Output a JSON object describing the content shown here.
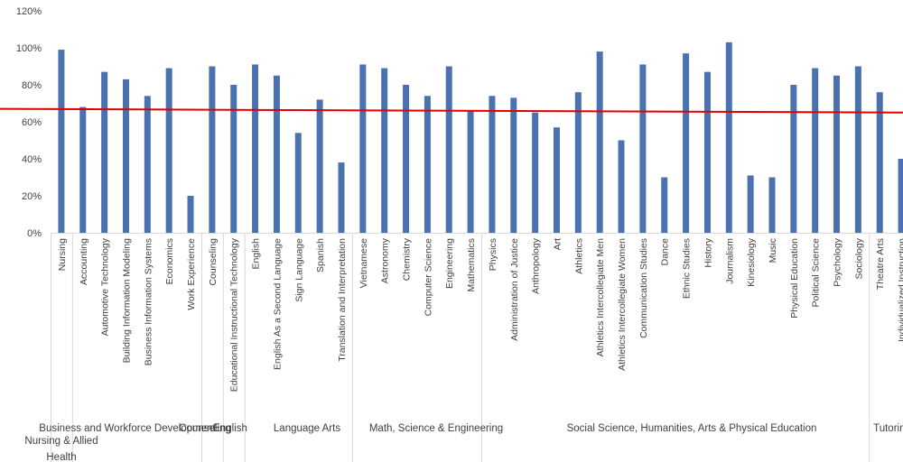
{
  "chart_data": {
    "type": "bar",
    "ylim": [
      0,
      120
    ],
    "y_ticks": [
      "0%",
      "20%",
      "40%",
      "60%",
      "80%",
      "100%",
      "120%"
    ],
    "grid": false,
    "legend": "none",
    "bar_color": "#4a72b0",
    "line_color": "#e00000",
    "categories": [
      "Nursing",
      "Accounting",
      "Automotive Technology",
      "Building Information Modeling",
      "Business Information Systems",
      "Economics",
      "Work Experience",
      "Counseling",
      "Educational Instructional Technology",
      "English",
      "English As a Second Language",
      "Sign Language",
      "Spanish",
      "Translation and Interpretation",
      "Vietnamese",
      "Astronomy",
      "Chemistry",
      "Computer Science",
      "Engineering",
      "Mathematics",
      "Physics",
      "Administration of Justice",
      "Anthropology",
      "Art",
      "Athletics",
      "Athletics Intercollegiate Men",
      "Athletics Intercollegiate Women",
      "Communication Studies",
      "Dance",
      "Ethnic Studies",
      "History",
      "Journalism",
      "Kinesiology",
      "Music",
      "Physical Education",
      "Political Science",
      "Psychology",
      "Sociology",
      "Theatre Arts",
      "Individualized Instruction"
    ],
    "values": [
      99,
      68,
      87,
      83,
      74,
      89,
      20,
      90,
      80,
      91,
      85,
      54,
      72,
      38,
      91,
      89,
      80,
      74,
      90,
      66,
      74,
      73,
      65,
      57,
      76,
      98,
      50,
      91,
      30,
      97,
      87,
      103,
      31,
      30,
      80,
      89,
      85,
      90,
      76,
      40
    ],
    "reference_line": {
      "start": 67,
      "end": 65
    },
    "groups": [
      {
        "label": "Nursing & Allied Health",
        "count": 1
      },
      {
        "label": "Business and Workforce Development",
        "count": 6
      },
      {
        "label": "Counseling",
        "count": 1
      },
      {
        "label": "English",
        "count": 1
      },
      {
        "label": "Language Arts",
        "count": 5
      },
      {
        "label": "Math, Science & Engineering",
        "count": 6
      },
      {
        "label": "Social Science, Humanities, Arts & Physical Education",
        "count": 18
      },
      {
        "label": "Tutoring",
        "count": 2
      }
    ]
  }
}
